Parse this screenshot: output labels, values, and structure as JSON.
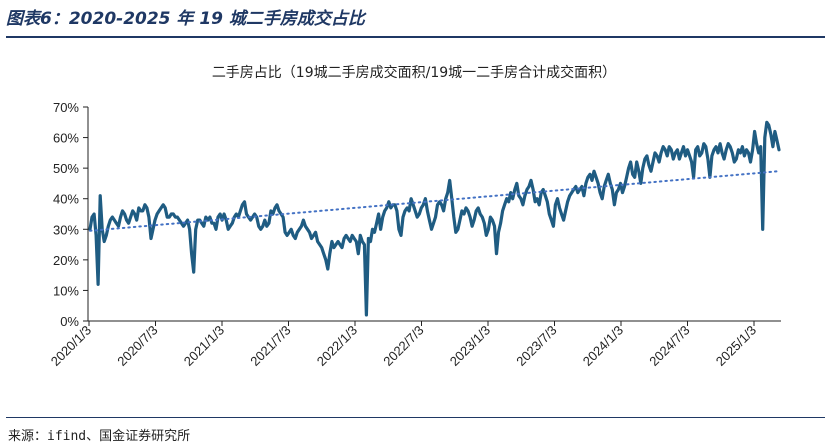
{
  "header": {
    "figure_title": "图表6：2020-2025 年 19 城二手房成交占比"
  },
  "footer": {
    "source": "来源：ifind、国金证券研究所"
  },
  "chart_data": {
    "type": "line",
    "title": "二手房占比（19城二手房成交面积/19城一二手房合计成交面积）",
    "xlabel": "",
    "ylabel": "",
    "ylim": [
      0,
      70
    ],
    "y_ticks": [
      "0%",
      "10%",
      "20%",
      "30%",
      "40%",
      "50%",
      "60%",
      "70%"
    ],
    "x_ticks": [
      "2020/1/3",
      "2020/7/3",
      "2021/1/3",
      "2021/7/3",
      "2022/1/3",
      "2022/7/3",
      "2023/1/3",
      "2023/7/3",
      "2024/1/3",
      "2024/7/3",
      "2025/1/3"
    ],
    "grid": false,
    "legend": "none",
    "colors": {
      "line": "#1f5c82",
      "trend": "#4472c4",
      "axis": "#222222"
    },
    "series": [
      {
        "style": "solid",
        "x_start": "2020/1/3",
        "frequency": "weekly",
        "values": [
          30,
          34,
          35,
          28,
          12,
          41,
          30,
          26,
          28,
          31,
          33,
          34,
          33,
          32,
          31,
          34,
          36,
          35,
          33,
          32,
          34,
          36,
          35,
          33,
          37,
          36,
          36,
          38,
          37,
          34,
          27,
          30,
          33,
          35,
          36,
          37,
          38,
          37,
          34,
          34,
          35,
          35,
          34,
          34,
          33,
          32,
          31,
          32,
          33,
          30,
          22,
          16,
          30,
          33,
          33,
          32,
          31,
          34,
          33,
          34,
          32,
          32,
          30,
          34,
          35,
          33,
          35,
          33,
          30,
          31,
          32,
          34,
          35,
          34,
          36,
          38,
          39,
          35,
          34,
          33,
          34,
          35,
          34,
          31,
          30,
          31,
          33,
          31,
          32,
          36,
          35,
          37,
          38,
          36,
          35,
          34,
          29,
          28,
          29,
          30,
          28,
          27,
          29,
          30,
          31,
          33,
          31,
          30,
          29,
          27,
          28,
          29,
          26,
          25,
          24,
          22,
          20,
          17,
          22,
          26,
          24,
          25,
          26,
          25,
          24,
          27,
          28,
          27,
          26,
          28,
          27,
          26,
          22,
          28,
          26,
          25,
          2,
          27,
          26,
          30,
          29,
          32,
          35,
          30,
          34,
          36,
          37,
          39,
          37,
          38,
          38,
          36,
          30,
          28,
          34,
          36,
          37,
          36,
          40,
          38,
          36,
          34,
          35,
          37,
          38,
          40,
          36,
          33,
          30,
          32,
          34,
          38,
          39,
          38,
          36,
          40,
          42,
          46,
          40,
          34,
          29,
          30,
          33,
          36,
          35,
          37,
          36,
          34,
          31,
          33,
          36,
          37,
          35,
          34,
          32,
          28,
          30,
          34,
          33,
          31,
          22,
          29,
          32,
          36,
          38,
          40,
          39,
          42,
          40,
          43,
          45,
          41,
          40,
          38,
          41,
          43,
          44,
          46,
          43,
          39,
          40,
          38,
          42,
          43,
          41,
          39,
          35,
          33,
          31,
          38,
          40,
          37,
          35,
          33,
          36,
          39,
          41,
          42,
          43,
          44,
          42,
          43,
          44,
          41,
          45,
          47,
          48,
          46,
          49,
          47,
          45,
          42,
          40,
          44,
          46,
          48,
          45,
          43,
          38,
          42,
          43,
          45,
          42,
          44,
          47,
          50,
          52,
          48,
          47,
          52,
          49,
          45,
          50,
          53,
          54,
          51,
          49,
          52,
          55,
          54,
          52,
          55,
          57,
          56,
          54,
          57,
          56,
          53,
          55,
          56,
          53,
          55,
          57,
          54,
          56,
          54,
          52,
          47,
          56,
          57,
          54,
          55,
          58,
          57,
          53,
          47,
          54,
          56,
          57,
          55,
          58,
          55,
          53,
          56,
          58,
          57,
          55,
          52,
          53,
          56,
          55,
          57,
          54,
          56,
          55,
          52,
          56,
          62,
          58,
          55,
          57,
          30,
          60,
          65,
          64,
          61,
          57,
          62,
          59,
          56
        ]
      },
      {
        "style": "dotted",
        "values": [
          29.5,
          49.0
        ]
      }
    ]
  }
}
